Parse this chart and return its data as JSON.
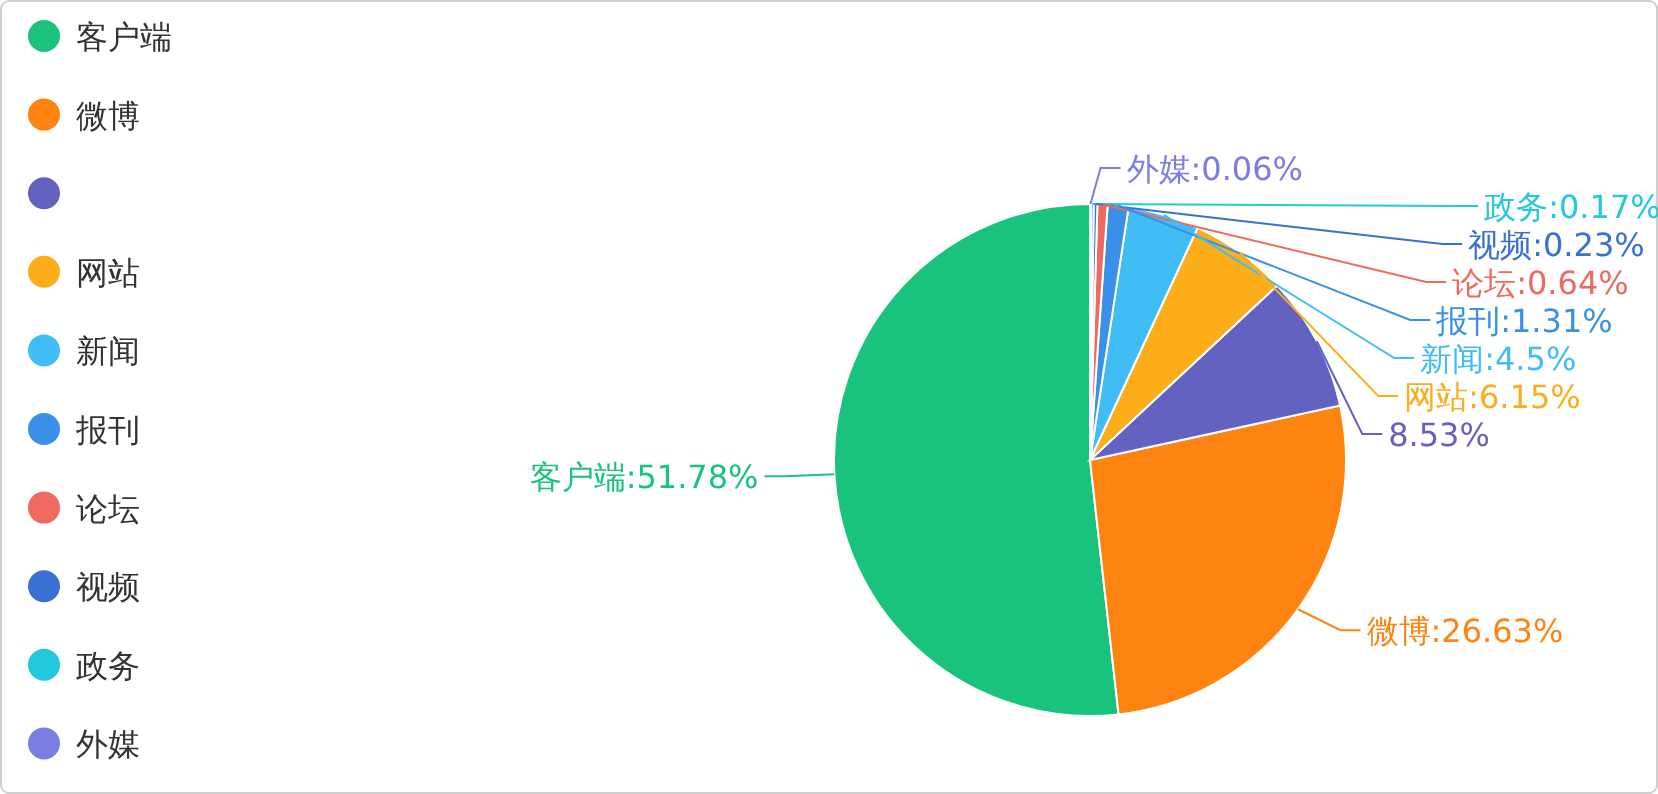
{
  "chart_data": {
    "type": "pie",
    "categories": [
      "客户端",
      "微博",
      null,
      "网站",
      "新闻",
      "报刊",
      "论坛",
      "视频",
      "政务",
      "外媒"
    ],
    "values": [
      51.78,
      26.63,
      8.53,
      6.15,
      4.5,
      1.31,
      0.64,
      0.23,
      0.17,
      0.06
    ],
    "colors": [
      "#19c37d",
      "#fd8410",
      "#6462c1",
      "#fbae19",
      "#41bdf6",
      "#3a90e8",
      "#ee6a5e",
      "#3a6fd3",
      "#22c8de",
      "#7b7ee0"
    ],
    "value_labels": [
      "客户端:51.78%",
      "微博:26.63%",
      "8.53%",
      "网站:6.15%",
      "新闻:4.5%",
      "报刊:1.31%",
      "论坛:0.64%",
      "视频:0.23%",
      "政务:0.17%",
      "外媒:0.06%"
    ],
    "legend": "left"
  }
}
